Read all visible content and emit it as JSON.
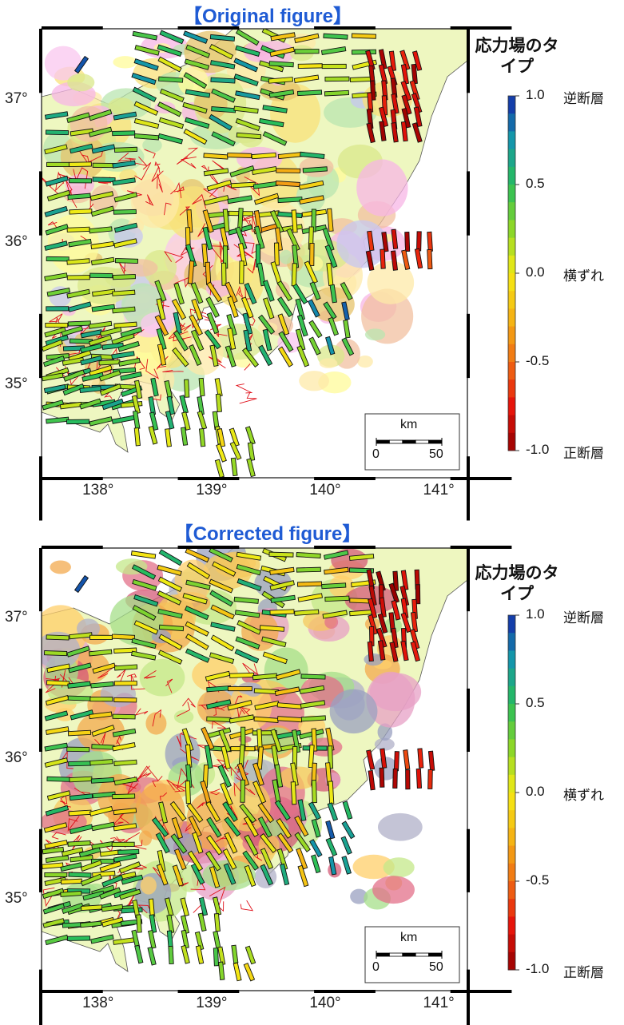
{
  "panels": [
    {
      "title": "【Original figure】",
      "lat_ticks": [
        "37°",
        "36°",
        "35°"
      ],
      "lon_ticks": [
        "138°",
        "139°",
        "140°",
        "141°"
      ],
      "colorbar": {
        "title": "応力場のタイプ",
        "tick_values": [
          "1.0",
          "0.5",
          "0.0",
          "-0.5",
          "-1.0"
        ],
        "top_label": "逆断層",
        "middle_label": "横ずれ",
        "bottom_label": "正断層"
      },
      "scalebar": {
        "unit": "km",
        "min_label": "0",
        "max_label": "50"
      }
    },
    {
      "title": "【Corrected figure】",
      "lat_ticks": [
        "37°",
        "36°",
        "35°"
      ],
      "lon_ticks": [
        "138°",
        "139°",
        "140°",
        "141°"
      ],
      "colorbar": {
        "title": "応力場のタイプ",
        "tick_values": [
          "1.0",
          "0.5",
          "0.0",
          "-0.5",
          "-1.0"
        ],
        "top_label": "逆断層",
        "middle_label": "横ずれ",
        "bottom_label": "正断層"
      },
      "scalebar": {
        "unit": "km",
        "min_label": "0",
        "max_label": "50"
      }
    }
  ],
  "colors": {
    "title": "#1f5bd4",
    "reverse": "#1a2fb0",
    "strike_slip": "#f4e600",
    "normal": "#b00000",
    "sea": "#ffffff"
  }
}
